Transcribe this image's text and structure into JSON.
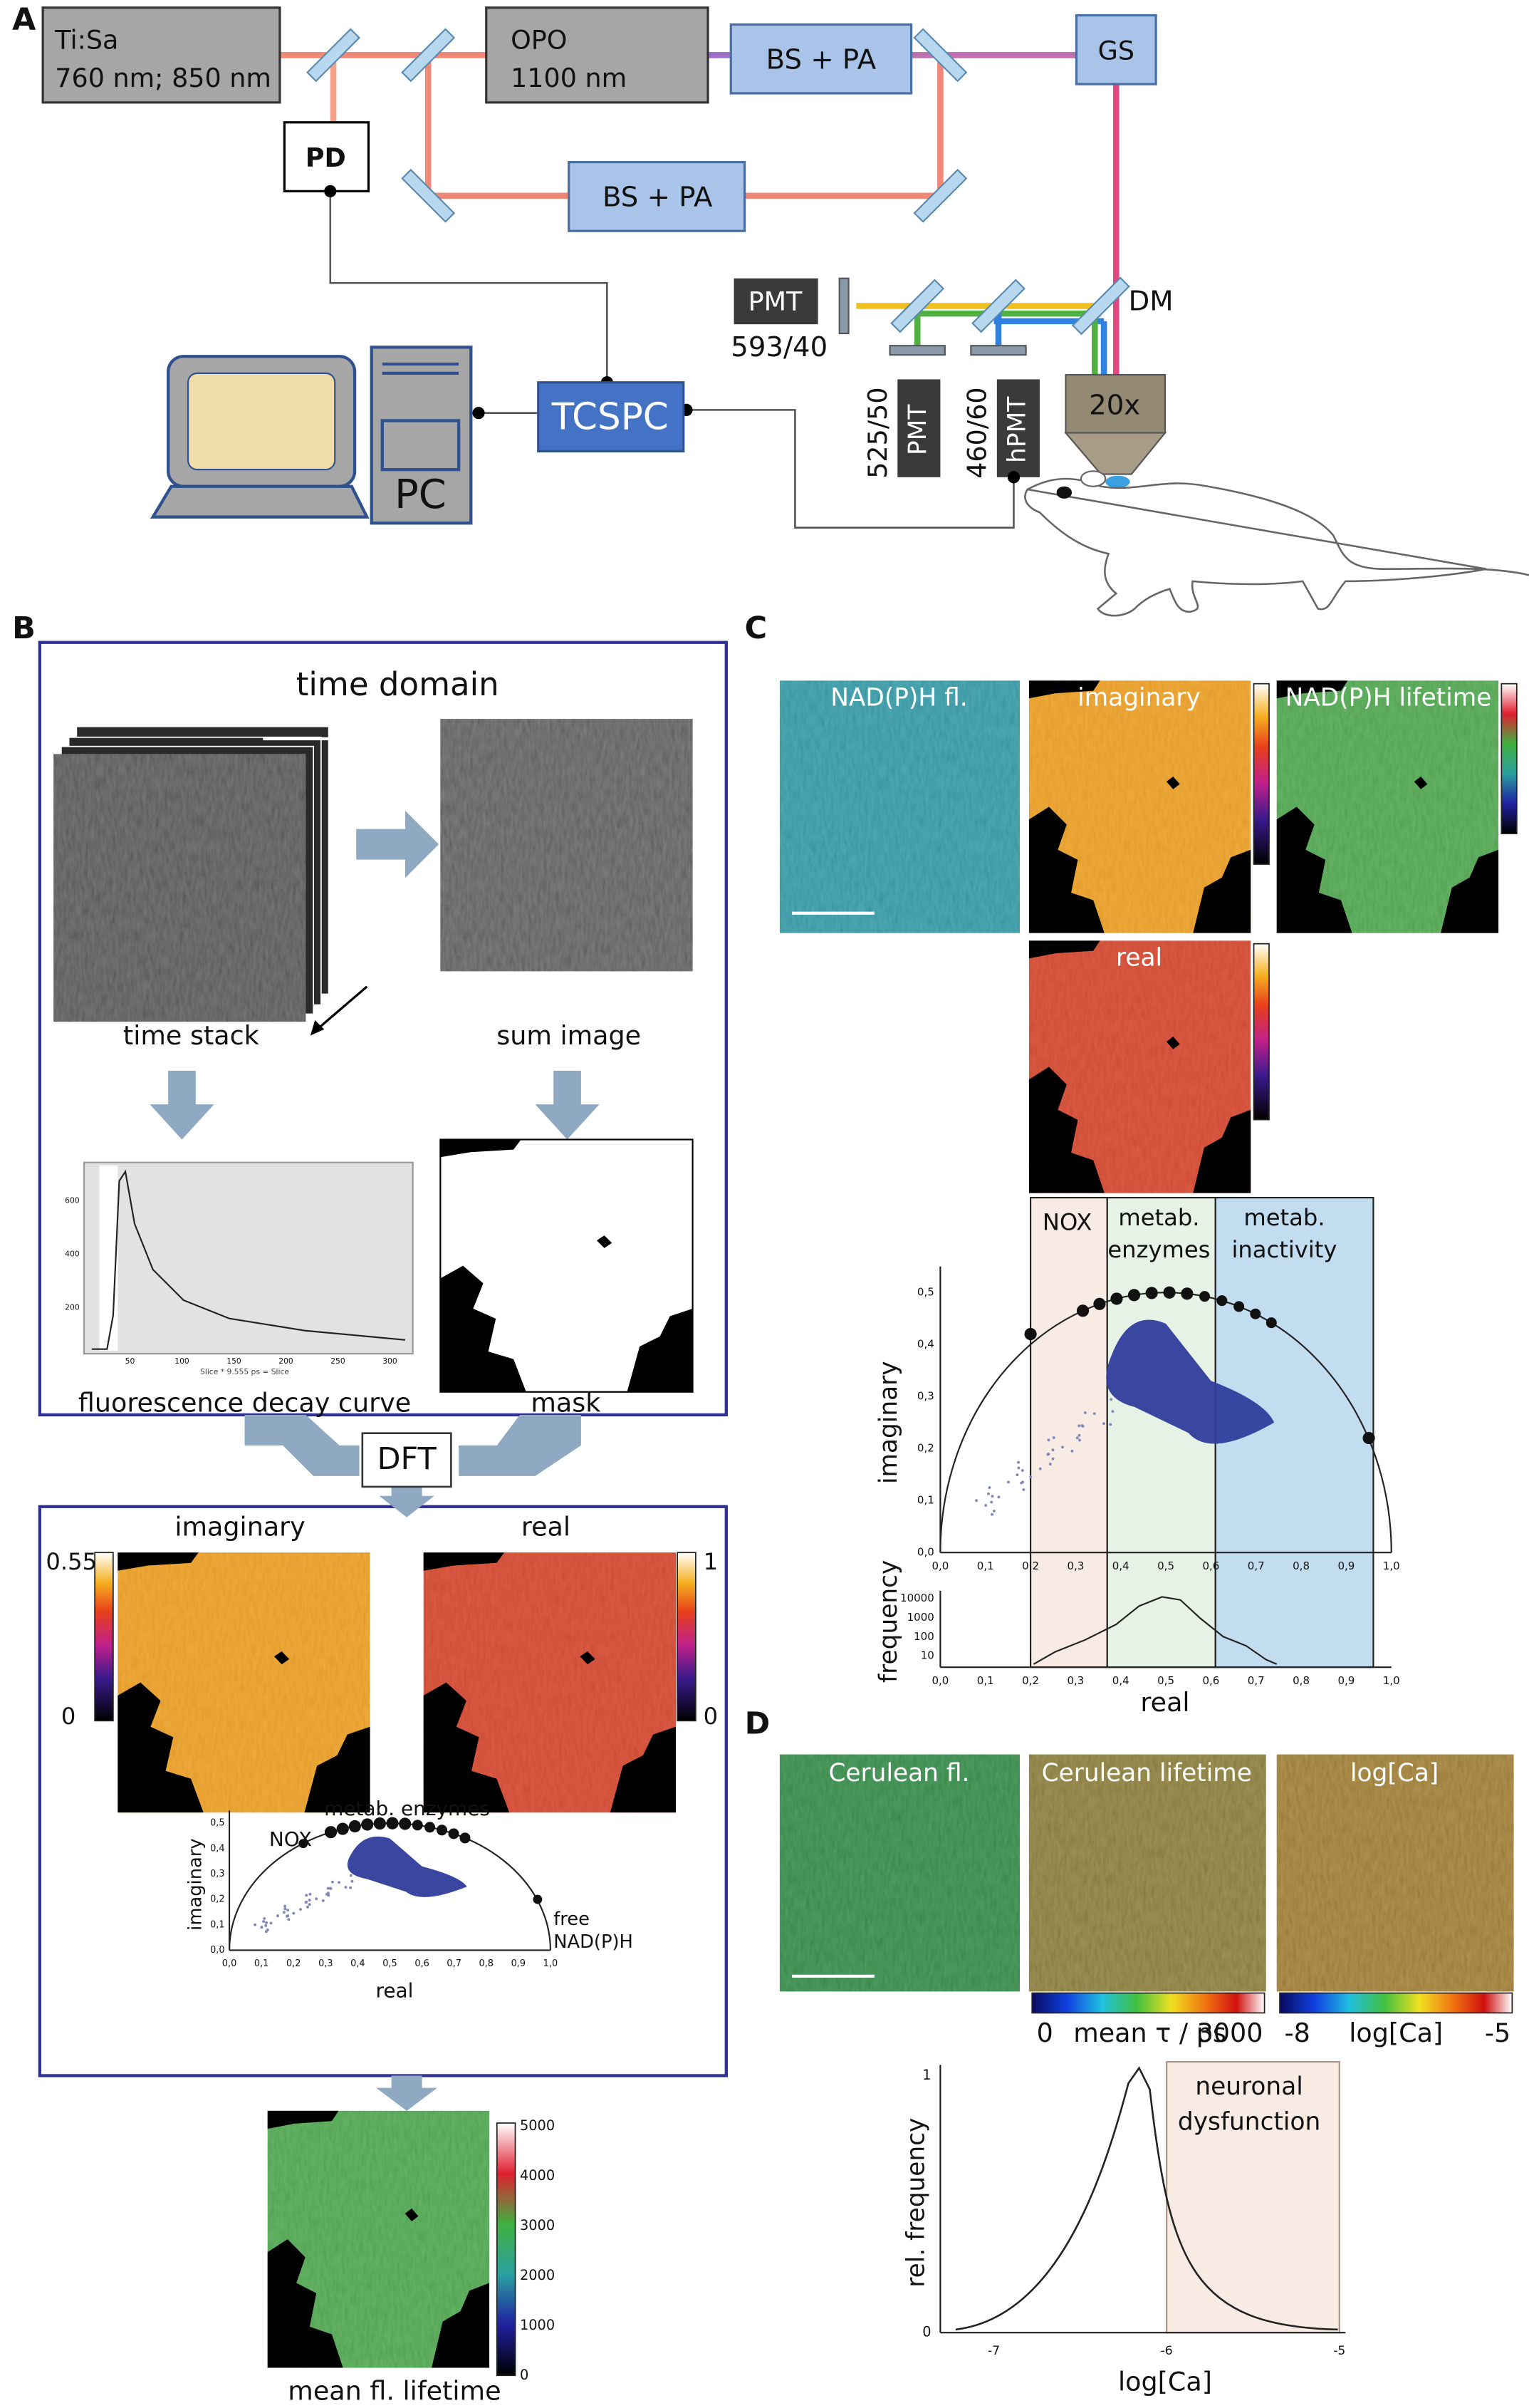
{
  "panel_a": {
    "label": "A",
    "laser": {
      "name": "Ti:Sa",
      "wavelengths": "760 nm; 850 nm"
    },
    "opo": {
      "name": "OPO",
      "wavelength": "1100 nm"
    },
    "bs_pa_top": "BS + PA",
    "bs_pa_bottom": "BS + PA",
    "gs": "GS",
    "pd": "PD",
    "pmt_red": {
      "name": "PMT",
      "filter": "593/40"
    },
    "dm": "DM",
    "pmt_green": {
      "name": "PMT",
      "filter": "525/50"
    },
    "hpmt": {
      "name": "hPMT",
      "filter": "460/60"
    },
    "objective": "20x",
    "tcspc": "TCSPC",
    "pc": "PC"
  },
  "panel_b": {
    "label": "B",
    "time_domain": "time domain",
    "time_stack": "time stack",
    "sum_image": "sum image",
    "decay_plot": {
      "yticks": [
        600,
        400,
        200
      ],
      "xticks": [
        50,
        100,
        150,
        200,
        250,
        300
      ],
      "xlabel": "Slice * 9.555 ps = Slice"
    },
    "decay_caption": "fluorescence decay curve",
    "mask": "mask",
    "dft": "DFT",
    "imaginary": {
      "title": "imaginary",
      "scale_max": 0.55,
      "scale_min": 0
    },
    "real": {
      "title": "real",
      "scale_max": 1,
      "scale_min": 0
    },
    "phasor": {
      "nox": "NOX",
      "metab": "metab. enzymes",
      "free": "free",
      "free_2": "NAD(P)H",
      "ylabel": "imaginary",
      "xlabel": "real",
      "xticks": [
        "0,0",
        "0,1",
        "0,2",
        "0,3",
        "0,4",
        "0,5",
        "0,6",
        "0,7",
        "0,8",
        "0,9",
        "1,0"
      ],
      "yticks": [
        "0,0",
        "0,1",
        "0,2",
        "0,3",
        "0,4",
        "0,5"
      ]
    },
    "lifetime_scale": [
      5000,
      4000,
      3000,
      2000,
      1000,
      0
    ],
    "lifetime_caption": "mean fl. lifetime"
  },
  "panel_c": {
    "label": "C",
    "images": [
      "NAD(P)H fl.",
      "imaginary",
      "NAD(P)H lifetime",
      "real"
    ],
    "regions": {
      "nox": "NOX",
      "metab_1": "metab.",
      "metab_2": "enzymes",
      "inact_1": "metab.",
      "inact_2": "inactivity"
    },
    "phasor": {
      "ylabel": "imaginary",
      "yticks": [
        "0,0",
        "0,1",
        "0,2",
        "0,3",
        "0,4",
        "0,5"
      ],
      "xticks": [
        "0,0",
        "0,1",
        "0,2",
        "0,3",
        "0,4",
        "0,5",
        "0,6",
        "0,7",
        "0,8",
        "0,9",
        "1,0"
      ]
    },
    "histogram": {
      "ylabel": "frequency",
      "yticks": [
        10000,
        1000,
        100,
        10
      ],
      "xticks": [
        "0,0",
        "0,1",
        "0,2",
        "0,3",
        "0,4",
        "0,5",
        "0,6",
        "0,7",
        "0,8",
        "0,9",
        "1,0"
      ],
      "xlabel": "real"
    }
  },
  "panel_d": {
    "label": "D",
    "images": [
      "Cerulean fl.",
      "Cerulean lifetime",
      "log[Ca]"
    ],
    "lifetime_bar": {
      "min": 0,
      "label": "mean τ / ps",
      "max": 3000
    },
    "ca_bar": {
      "min": -8,
      "label": "log[Ca]",
      "max": -5
    },
    "histogram": {
      "region": [
        "neuronal",
        "dysfunction"
      ],
      "ylabel": "rel. frequency",
      "xlabel": "log[Ca]",
      "xticks": [
        -7,
        -6,
        -5
      ],
      "yticks": [
        1,
        0
      ]
    }
  }
}
